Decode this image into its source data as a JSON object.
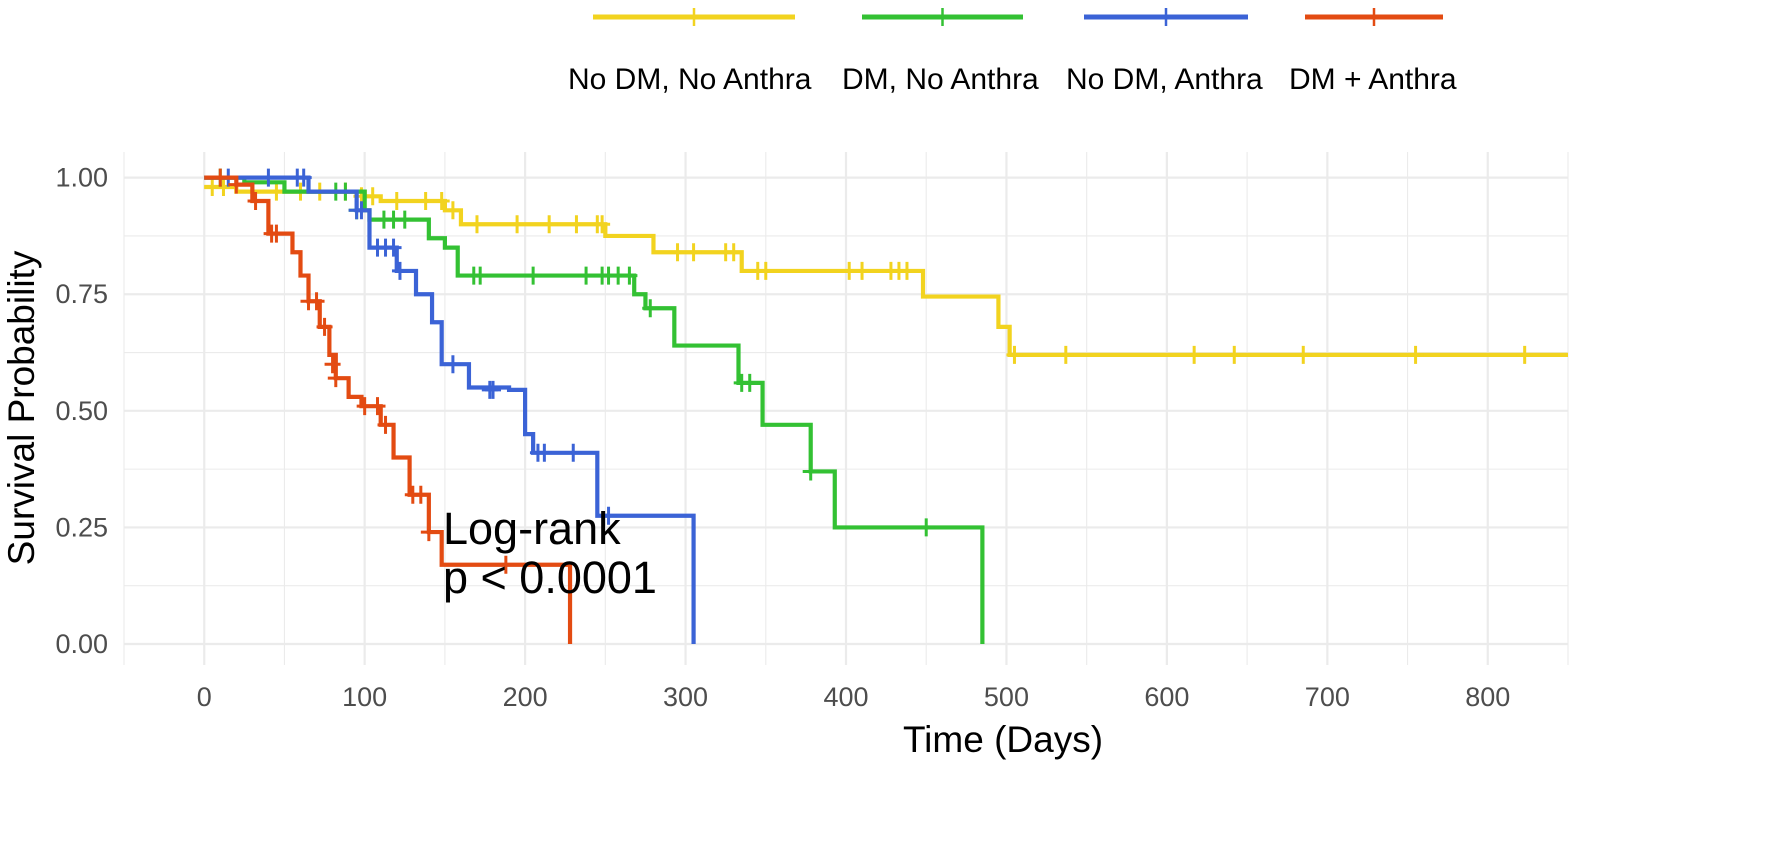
{
  "chart_data": {
    "type": "line",
    "subtype": "kaplan-meier-step",
    "xlabel": "Time (Days)",
    "ylabel": "Survival Probability",
    "xlim": [
      -50,
      850
    ],
    "ylim": [
      -0.045,
      1.055
    ],
    "x_ticks": [
      0,
      100,
      200,
      300,
      400,
      500,
      600,
      700,
      800
    ],
    "x_tick_labels": [
      "0",
      "100",
      "200",
      "300",
      "400",
      "500",
      "600",
      "700",
      "800"
    ],
    "y_ticks": [
      0,
      0.25,
      0.5,
      0.75,
      1.0
    ],
    "y_tick_labels": [
      "0.00",
      "0.25",
      "0.50",
      "0.75",
      "1.00"
    ],
    "grid": true,
    "legend_position": "top",
    "annotation": {
      "lines": [
        "Log-rank",
        "p < 0.0001"
      ],
      "x": 150,
      "y": 0.25
    },
    "series": [
      {
        "name": "No DM, No Anthra",
        "color": "#F2D31F",
        "steps": [
          [
            0,
            0.98
          ],
          [
            20,
            0.97
          ],
          [
            100,
            0.96
          ],
          [
            110,
            0.95
          ],
          [
            150,
            0.93
          ],
          [
            160,
            0.9
          ],
          [
            250,
            0.875
          ],
          [
            280,
            0.84
          ],
          [
            335,
            0.8
          ],
          [
            448,
            0.745
          ],
          [
            495,
            0.68
          ],
          [
            502,
            0.62
          ],
          [
            850,
            0.62
          ]
        ],
        "censors": [
          [
            5,
            0.98
          ],
          [
            12,
            0.98
          ],
          [
            30,
            0.97
          ],
          [
            45,
            0.97
          ],
          [
            60,
            0.97
          ],
          [
            72,
            0.97
          ],
          [
            88,
            0.97
          ],
          [
            98,
            0.96
          ],
          [
            105,
            0.96
          ],
          [
            120,
            0.95
          ],
          [
            138,
            0.95
          ],
          [
            148,
            0.95
          ],
          [
            155,
            0.93
          ],
          [
            170,
            0.9
          ],
          [
            195,
            0.9
          ],
          [
            215,
            0.9
          ],
          [
            232,
            0.9
          ],
          [
            245,
            0.9
          ],
          [
            248,
            0.9
          ],
          [
            295,
            0.84
          ],
          [
            305,
            0.84
          ],
          [
            325,
            0.84
          ],
          [
            330,
            0.84
          ],
          [
            345,
            0.8
          ],
          [
            350,
            0.8
          ],
          [
            402,
            0.8
          ],
          [
            410,
            0.8
          ],
          [
            428,
            0.8
          ],
          [
            433,
            0.8
          ],
          [
            438,
            0.8
          ],
          [
            505,
            0.62
          ],
          [
            537,
            0.62
          ],
          [
            617,
            0.62
          ],
          [
            642,
            0.62
          ],
          [
            685,
            0.62
          ],
          [
            755,
            0.62
          ],
          [
            823,
            0.62
          ]
        ]
      },
      {
        "name": "DM, No Anthra",
        "color": "#33C133",
        "steps": [
          [
            0,
            1.0
          ],
          [
            25,
            0.99
          ],
          [
            50,
            0.97
          ],
          [
            60,
            0.97
          ],
          [
            100,
            0.93
          ],
          [
            103,
            0.91
          ],
          [
            140,
            0.87
          ],
          [
            150,
            0.85
          ],
          [
            158,
            0.79
          ],
          [
            268,
            0.75
          ],
          [
            275,
            0.72
          ],
          [
            293,
            0.64
          ],
          [
            333,
            0.56
          ],
          [
            348,
            0.47
          ],
          [
            378,
            0.37
          ],
          [
            393,
            0.25
          ],
          [
            485,
            0.0
          ]
        ],
        "censors": [
          [
            10,
            1.0
          ],
          [
            82,
            0.97
          ],
          [
            88,
            0.97
          ],
          [
            95,
            0.93
          ],
          [
            112,
            0.91
          ],
          [
            118,
            0.91
          ],
          [
            125,
            0.91
          ],
          [
            168,
            0.79
          ],
          [
            172,
            0.79
          ],
          [
            205,
            0.79
          ],
          [
            238,
            0.79
          ],
          [
            248,
            0.79
          ],
          [
            252,
            0.79
          ],
          [
            258,
            0.79
          ],
          [
            265,
            0.79
          ],
          [
            278,
            0.72
          ],
          [
            335,
            0.56
          ],
          [
            340,
            0.56
          ],
          [
            378,
            0.37
          ],
          [
            450,
            0.25
          ]
        ]
      },
      {
        "name": "No DM, Anthra",
        "color": "#3B63D6",
        "steps": [
          [
            0,
            1.0
          ],
          [
            40,
            1.0
          ],
          [
            65,
            0.97
          ],
          [
            95,
            0.93
          ],
          [
            103,
            0.85
          ],
          [
            120,
            0.8
          ],
          [
            132,
            0.75
          ],
          [
            142,
            0.69
          ],
          [
            148,
            0.6
          ],
          [
            165,
            0.55
          ],
          [
            190,
            0.545
          ],
          [
            200,
            0.45
          ],
          [
            205,
            0.41
          ],
          [
            245,
            0.275
          ],
          [
            305,
            0.0
          ]
        ],
        "censors": [
          [
            15,
            1.0
          ],
          [
            40,
            1.0
          ],
          [
            58,
            1.0
          ],
          [
            62,
            1.0
          ],
          [
            95,
            0.93
          ],
          [
            98,
            0.93
          ],
          [
            108,
            0.85
          ],
          [
            113,
            0.85
          ],
          [
            118,
            0.85
          ],
          [
            122,
            0.8
          ],
          [
            155,
            0.6
          ],
          [
            178,
            0.545
          ],
          [
            180,
            0.545
          ],
          [
            208,
            0.41
          ],
          [
            212,
            0.41
          ],
          [
            230,
            0.41
          ],
          [
            252,
            0.275
          ]
        ]
      },
      {
        "name": "DM + Anthra",
        "color": "#E34B12",
        "steps": [
          [
            0,
            1.0
          ],
          [
            20,
            0.985
          ],
          [
            30,
            0.95
          ],
          [
            40,
            0.88
          ],
          [
            55,
            0.84
          ],
          [
            60,
            0.79
          ],
          [
            65,
            0.735
          ],
          [
            72,
            0.68
          ],
          [
            78,
            0.62
          ],
          [
            82,
            0.57
          ],
          [
            90,
            0.53
          ],
          [
            98,
            0.51
          ],
          [
            110,
            0.47
          ],
          [
            118,
            0.4
          ],
          [
            128,
            0.32
          ],
          [
            140,
            0.24
          ],
          [
            148,
            0.17
          ],
          [
            228,
            0.0
          ]
        ],
        "censors": [
          [
            10,
            1.0
          ],
          [
            20,
            0.985
          ],
          [
            32,
            0.95
          ],
          [
            42,
            0.88
          ],
          [
            45,
            0.88
          ],
          [
            65,
            0.735
          ],
          [
            70,
            0.735
          ],
          [
            75,
            0.68
          ],
          [
            80,
            0.6
          ],
          [
            82,
            0.57
          ],
          [
            100,
            0.51
          ],
          [
            108,
            0.51
          ],
          [
            113,
            0.47
          ],
          [
            130,
            0.32
          ],
          [
            135,
            0.32
          ],
          [
            140,
            0.24
          ],
          [
            188,
            0.17
          ]
        ]
      }
    ]
  }
}
